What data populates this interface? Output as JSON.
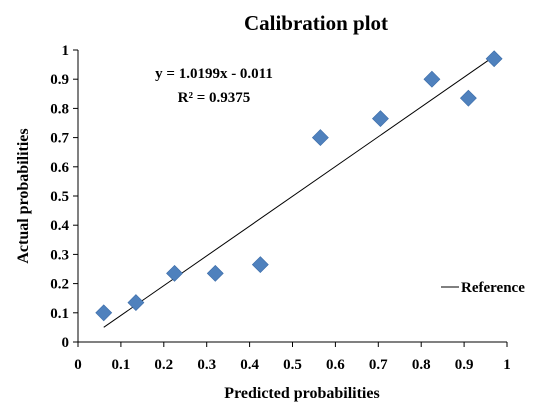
{
  "chart_data": {
    "type": "scatter",
    "title": "Calibration plot",
    "xlabel": "Predicted probabilities",
    "ylabel": "Actual probabilities",
    "xlim": [
      0,
      1
    ],
    "ylim": [
      0,
      1
    ],
    "xticks": [
      "0",
      "0.1",
      "0.2",
      "0.3",
      "0.4",
      "0.5",
      "0.6",
      "0.7",
      "0.8",
      "0.9",
      "1"
    ],
    "yticks": [
      "0",
      "0.1",
      "0.2",
      "0.3",
      "0.4",
      "0.5",
      "0.6",
      "0.7",
      "0.8",
      "0.9",
      "1"
    ],
    "grid": false,
    "legend_position": "right",
    "marker_color": "#4F81BD",
    "points": [
      {
        "x": 0.06,
        "y": 0.1
      },
      {
        "x": 0.135,
        "y": 0.135
      },
      {
        "x": 0.225,
        "y": 0.235
      },
      {
        "x": 0.32,
        "y": 0.235
      },
      {
        "x": 0.425,
        "y": 0.265
      },
      {
        "x": 0.565,
        "y": 0.7
      },
      {
        "x": 0.705,
        "y": 0.765
      },
      {
        "x": 0.825,
        "y": 0.9
      },
      {
        "x": 0.91,
        "y": 0.835
      },
      {
        "x": 0.97,
        "y": 0.97
      }
    ],
    "trendline": {
      "slope": 1.0199,
      "intercept": -0.011,
      "x_start": 0.06,
      "x_end": 0.97,
      "equation": "y = 1.0199x - 0.011",
      "r_squared": "R² = 0.9375",
      "legend_label": "Reference"
    }
  }
}
